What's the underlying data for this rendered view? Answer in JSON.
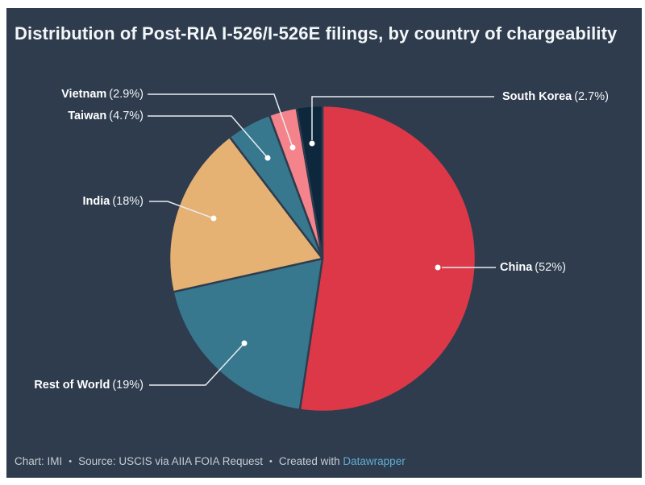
{
  "title": "Distribution of Post-RIA I-526/I-526E filings, by country of chargeability",
  "footer": {
    "chart_credit": "Chart: IMI",
    "separator": "•",
    "source": "Source: USCIS via AIIA FOIA Request",
    "created_with": "Created with",
    "tool_link": "Datawrapper"
  },
  "colors": {
    "background": "#2e3c4e",
    "page": "#ffffff",
    "title_text": "#f3f6f8",
    "label_text": "#ffffff",
    "leader_line": "#e8ecef",
    "dot": "#ffffff",
    "footer_text": "#c7cdd3",
    "link": "#64aed2"
  },
  "chart_data": {
    "type": "pie",
    "title": "Distribution of Post-RIA I-526/I-526E filings, by country of chargeability",
    "start_angle_deg": 0,
    "direction": "clockwise",
    "legend_position": "callout-labels",
    "slices": [
      {
        "label": "China",
        "value": 52,
        "display": "(52%)",
        "color": "#dc3848"
      },
      {
        "label": "Rest of World",
        "value": 19,
        "display": "(19%)",
        "color": "#37788f"
      },
      {
        "label": "India",
        "value": 18,
        "display": "(18%)",
        "color": "#e6b273"
      },
      {
        "label": "Taiwan",
        "value": 4.7,
        "display": "(4.7%)",
        "color": "#37788f"
      },
      {
        "label": "Vietnam",
        "value": 2.9,
        "display": "(2.9%)",
        "color": "#f5838b"
      },
      {
        "label": "South Korea",
        "value": 2.7,
        "display": "(2.7%)",
        "color": "#0d273c"
      }
    ]
  }
}
